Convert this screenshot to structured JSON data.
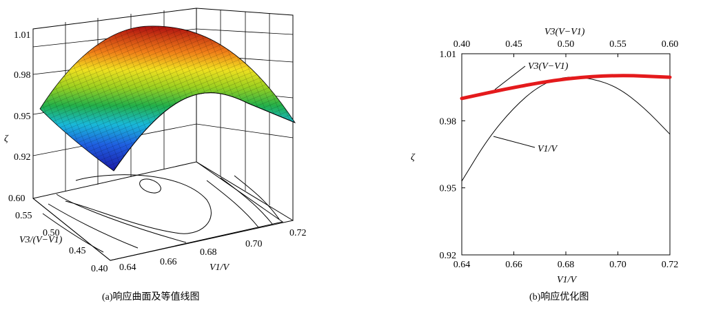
{
  "captions": {
    "left": "(a)响应曲面及等值线图",
    "right": "(b)响应优化图"
  },
  "chart_data": [
    {
      "type": "surface3d",
      "id": "a",
      "xlabel": "V1/V",
      "ylabel": "V3/(V−V1)",
      "zlabel": "ζ",
      "x_ticks": [
        "0.64",
        "0.66",
        "0.68",
        "0.70",
        "0.72"
      ],
      "y_ticks": [
        "0.40",
        "0.45",
        "0.50",
        "0.55",
        "0.60"
      ],
      "z_ticks": [
        "0.92",
        "0.95",
        "0.98",
        "1.01"
      ],
      "xlim": [
        0.64,
        0.72
      ],
      "ylim": [
        0.4,
        0.6
      ],
      "zlim": [
        0.9,
        1.01
      ],
      "surface": {
        "peak_x1": 0.68,
        "peak_x3": 0.55,
        "peak_zeta": 1.006,
        "zeta_at_0.64_0.40": 0.924,
        "zeta_at_0.72_0.60": 0.968
      },
      "contours": "on floor",
      "colormap": "jet"
    },
    {
      "type": "line",
      "id": "b",
      "xlabel": "V1/V",
      "x2label": "V3(V−V1)",
      "ylabel": "ζ",
      "x_ticks": [
        "0.64",
        "0.66",
        "0.68",
        "0.70",
        "0.72"
      ],
      "x2_ticks": [
        "0.40",
        "0.45",
        "0.50",
        "0.55",
        "0.60"
      ],
      "y_ticks": [
        "0.92",
        "0.95",
        "0.98",
        "1.01"
      ],
      "xlim": [
        0.64,
        0.72
      ],
      "x2lim": [
        0.4,
        0.6
      ],
      "ylim": [
        0.92,
        1.01
      ],
      "series": [
        {
          "name": "V1/V",
          "axis": "bottom",
          "color": "#000000",
          "x": [
            0.64,
            0.65,
            0.66,
            0.67,
            0.68,
            0.69,
            0.7,
            0.71,
            0.72
          ],
          "y": [
            0.953,
            0.972,
            0.986,
            0.996,
            1.0,
            0.999,
            0.995,
            0.986,
            0.974
          ]
        },
        {
          "name": "V3(V−V1)",
          "axis": "top",
          "color": "#e41a1c",
          "x": [
            0.4,
            0.45,
            0.5,
            0.55,
            0.6
          ],
          "y": [
            0.99,
            0.995,
            0.999,
            1.0005,
            0.9995
          ]
        }
      ]
    }
  ]
}
